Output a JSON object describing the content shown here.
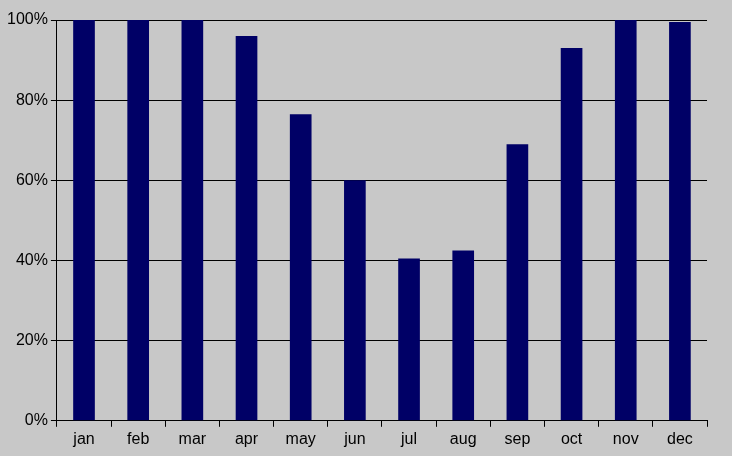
{
  "chart_data": {
    "type": "bar",
    "categories": [
      "jan",
      "feb",
      "mar",
      "apr",
      "may",
      "jun",
      "jul",
      "aug",
      "sep",
      "oct",
      "nov",
      "dec"
    ],
    "values": [
      100,
      100,
      100,
      96,
      76.5,
      60,
      40.5,
      42.5,
      69,
      93,
      100,
      99.5
    ],
    "color": "#000066",
    "ylim": [
      0,
      100
    ],
    "yticks": [
      {
        "value": 0,
        "label": "0%"
      },
      {
        "value": 20,
        "label": "20%"
      },
      {
        "value": 40,
        "label": "40%"
      },
      {
        "value": 60,
        "label": "60%"
      },
      {
        "value": 80,
        "label": "80%"
      },
      {
        "value": 100,
        "label": "100%"
      }
    ],
    "grid": true
  }
}
